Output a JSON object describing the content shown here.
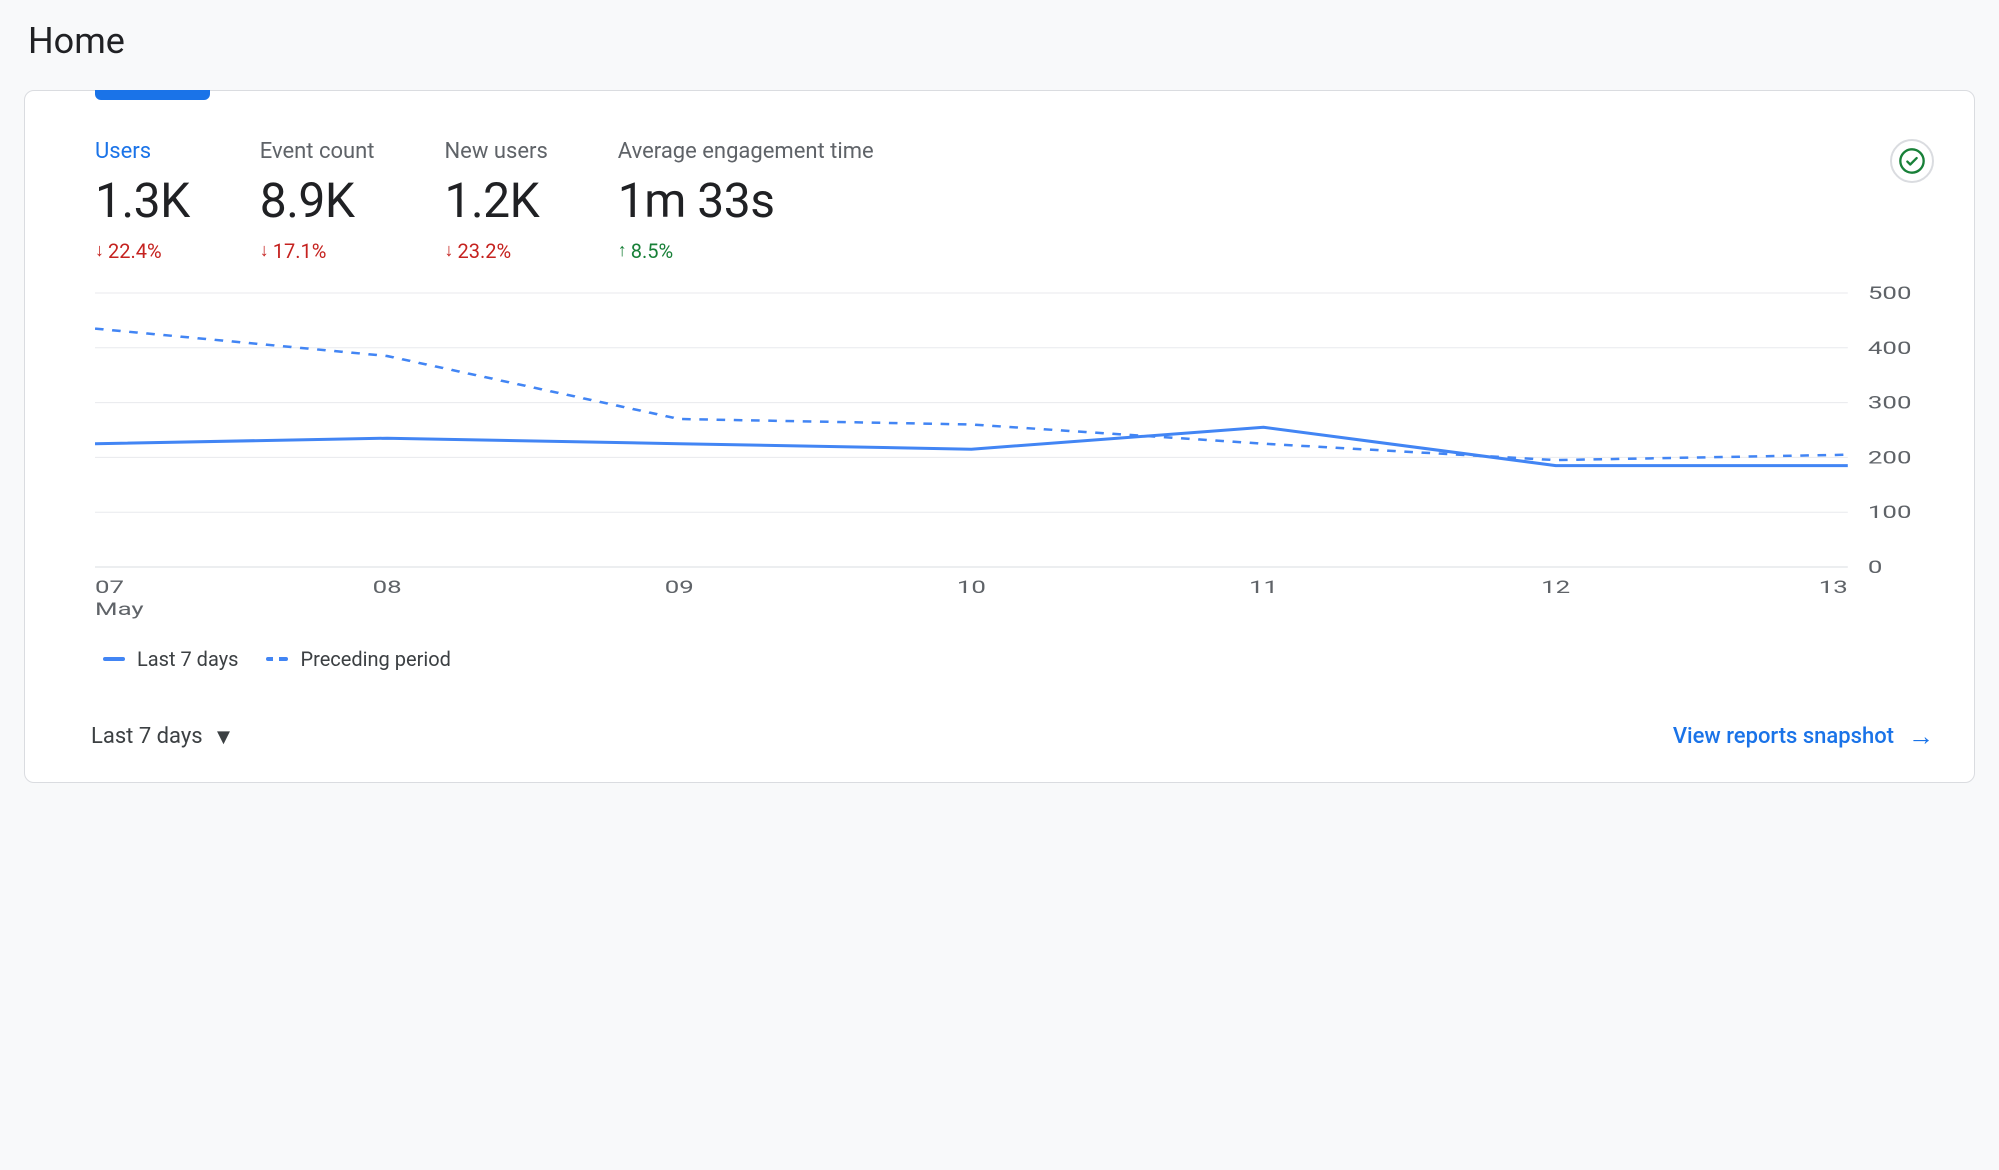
{
  "page": {
    "title": "Home"
  },
  "metrics": [
    {
      "key": "users",
      "label": "Users",
      "value": "1.3K",
      "change": "22.4%",
      "direction": "down",
      "active": true
    },
    {
      "key": "event_count",
      "label": "Event count",
      "value": "8.9K",
      "change": "17.1%",
      "direction": "down",
      "active": false
    },
    {
      "key": "new_users",
      "label": "New users",
      "value": "1.2K",
      "change": "23.2%",
      "direction": "down",
      "active": false
    },
    {
      "key": "avg_engage",
      "label": "Average engagement time",
      "value": "1m 33s",
      "change": "8.5%",
      "direction": "up",
      "active": false
    }
  ],
  "chart": {
    "type": "line",
    "y": {
      "min": 0,
      "max": 500,
      "ticks": [
        0,
        100,
        200,
        300,
        400,
        500
      ]
    },
    "x": {
      "labels": [
        "07",
        "08",
        "09",
        "10",
        "11",
        "12",
        "13"
      ],
      "sublabel": "May"
    },
    "series": [
      {
        "key": "current",
        "name": "Last 7 days",
        "style": "solid",
        "color": "#4285f4",
        "values": [
          225,
          235,
          225,
          215,
          255,
          185,
          185
        ]
      },
      {
        "key": "preceding",
        "name": "Preceding period",
        "style": "dashed",
        "color": "#4285f4",
        "values": [
          435,
          385,
          270,
          260,
          225,
          195,
          205
        ]
      }
    ],
    "grid_color": "#e8eaed",
    "background": "#ffffff",
    "label_color": "#5f6368",
    "line_width_current": 3,
    "line_width_preceding": 2.5
  },
  "legend": {
    "current": "Last 7 days",
    "preceding": "Preceding period"
  },
  "footer": {
    "period_label": "Last 7 days",
    "snapshot_label": "View reports snapshot"
  },
  "status": {
    "ok": true
  },
  "colors": {
    "primary": "#1a73e8",
    "series": "#4285f4",
    "text": "#202124",
    "muted": "#5f6368",
    "down": "#c5221f",
    "up": "#188038",
    "border": "#dadce0",
    "page_bg": "#f8f9fa"
  }
}
